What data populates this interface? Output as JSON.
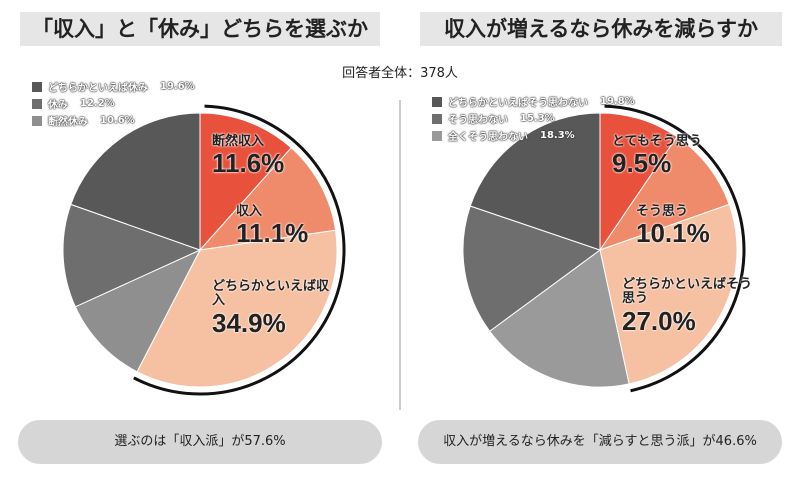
{
  "respondents": "回答者全体：378人",
  "colors": {
    "red": "#e8523c",
    "salmon": "#ef8b6b",
    "peach": "#f6c0a2",
    "g1": "#9a9a9a",
    "g2": "#6e6e6e",
    "g3": "#585858"
  },
  "chart_data": [
    {
      "type": "pie",
      "title": "「収入」と「休み」どちらを選ぶか",
      "slices": [
        {
          "label": "断然収入",
          "value": 11.6,
          "color": "#e8523c"
        },
        {
          "label": "収入",
          "value": 11.1,
          "color": "#ef8b6b"
        },
        {
          "label": "どちらかといえば収入",
          "value": 34.9,
          "color": "#f6c0a2"
        },
        {
          "label": "断然休み",
          "value": 10.6,
          "color": "#8f8f8f"
        },
        {
          "label": "休み",
          "value": 12.2,
          "color": "#6e6e6e"
        },
        {
          "label": "どちらかといえば休み",
          "value": 19.6,
          "color": "#585858"
        }
      ],
      "legend": [
        {
          "label": "どちらかといえば休み",
          "pct": "19.6%",
          "color": "#585858"
        },
        {
          "label": "休み",
          "pct": "12.2%",
          "color": "#6e6e6e"
        },
        {
          "label": "断然休み",
          "pct": "10.6%",
          "color": "#8f8f8f"
        }
      ],
      "labels": [
        {
          "name": "断然収入",
          "pct": "11.6%"
        },
        {
          "name": "収入",
          "pct": "11.1%"
        },
        {
          "name": "どちらかといえば収入",
          "pct": "34.9%"
        }
      ],
      "highlight_pct": 57.6,
      "summary": "選ぶのは「収入派」が57.6%"
    },
    {
      "type": "pie",
      "title": "収入が増えるなら休みを減らすか",
      "slices": [
        {
          "label": "とてもそう思う",
          "value": 9.5,
          "color": "#e8523c"
        },
        {
          "label": "そう思う",
          "value": 10.1,
          "color": "#ef8b6b"
        },
        {
          "label": "どちらかといえばそう思う",
          "value": 27.0,
          "color": "#f6c0a2"
        },
        {
          "label": "全くそう思わない",
          "value": 18.3,
          "color": "#9a9a9a"
        },
        {
          "label": "そう思わない",
          "value": 15.3,
          "color": "#6e6e6e"
        },
        {
          "label": "どちらかといえばそう思わない",
          "value": 19.8,
          "color": "#585858"
        }
      ],
      "legend": [
        {
          "label": "どちらかといえばそう思わない",
          "pct": "19.8%",
          "color": "#585858"
        },
        {
          "label": "そう思わない",
          "pct": "15.3%",
          "color": "#6e6e6e"
        },
        {
          "label": "全くそう思わない",
          "pct": "18.3%",
          "color": "#9a9a9a"
        }
      ],
      "labels": [
        {
          "name": "とてもそう思う",
          "pct": "9.5%"
        },
        {
          "name": "そう思う",
          "pct": "10.1%"
        },
        {
          "name": "どちらかといえばそう思う",
          "pct": "27.0%"
        }
      ],
      "highlight_pct": 46.6,
      "summary": "収入が増えるなら休みを「減らすと思う派」が46.6%"
    }
  ]
}
